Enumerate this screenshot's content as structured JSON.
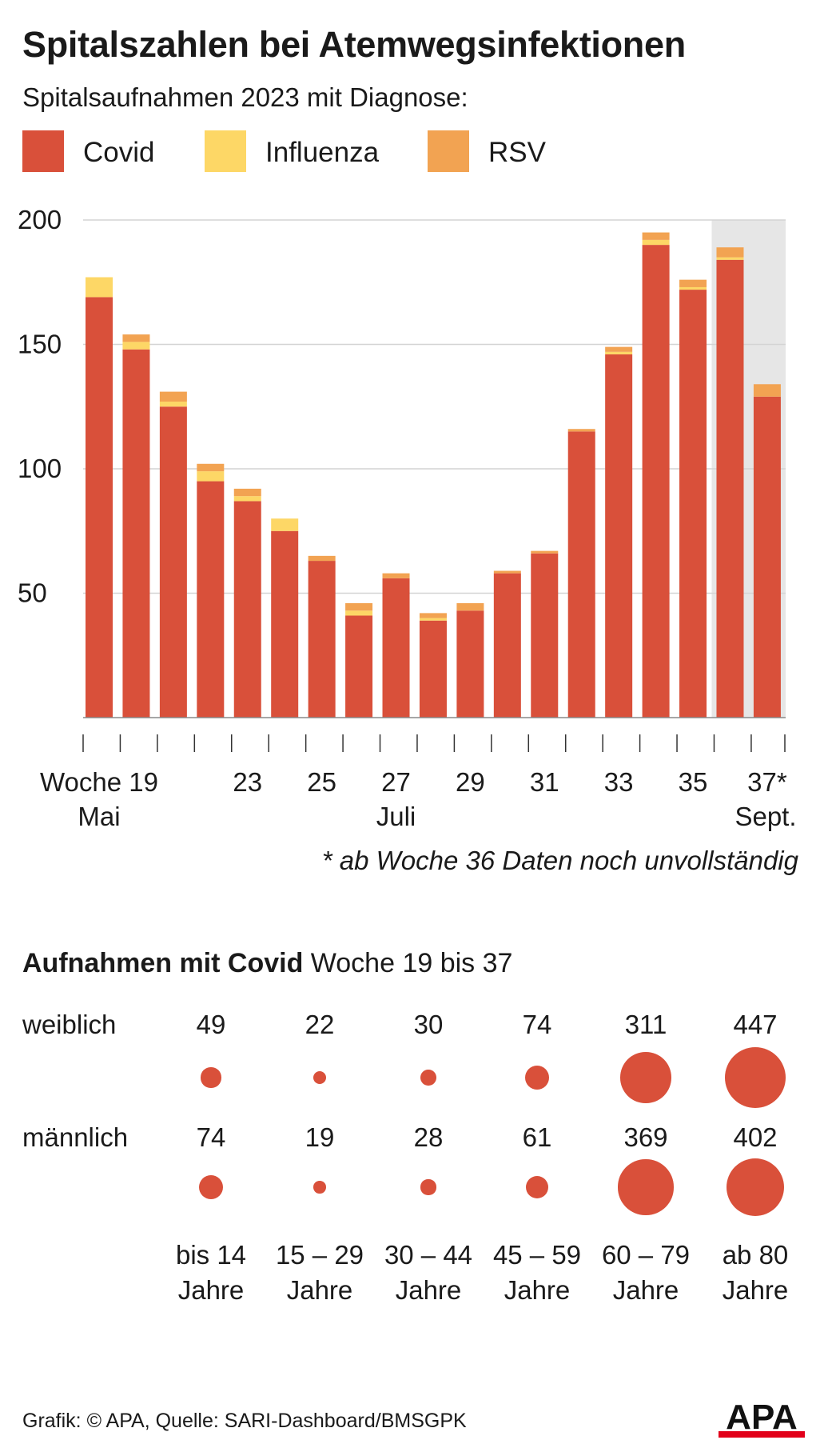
{
  "title": "Spitalszahlen bei Atemwegsinfektionen",
  "subtitle": "Spitalsaufnahmen 2023 mit Diagnose:",
  "colors": {
    "covid": "#d9503a",
    "influenza": "#fdd766",
    "rsv": "#f2a352",
    "shade": "#e6e6e6",
    "grid": "#d4d4d4"
  },
  "legend": {
    "covid": "Covid",
    "influenza": "Influenza",
    "rsv": "RSV"
  },
  "chart_data": {
    "type": "bar",
    "stacked": true,
    "weeks": [
      19,
      20,
      21,
      22,
      23,
      24,
      25,
      26,
      27,
      28,
      29,
      30,
      31,
      32,
      33,
      34,
      35,
      36,
      37
    ],
    "x_tick_labels": [
      "Woche 19",
      "23",
      "25",
      "27",
      "29",
      "31",
      "33",
      "35",
      "37*"
    ],
    "x_tick_weeks": [
      19,
      23,
      25,
      27,
      29,
      31,
      33,
      35,
      37
    ],
    "month_labels": [
      {
        "label": "Mai",
        "week": 19
      },
      {
        "label": "Juli",
        "week": 27
      },
      {
        "label": "Sept.",
        "week": 37
      }
    ],
    "ylim": [
      0,
      200
    ],
    "y_ticks": [
      50,
      100,
      150,
      200
    ],
    "shaded_from_week": 36,
    "series": [
      {
        "name": "Covid",
        "values": [
          169,
          148,
          125,
          95,
          87,
          75,
          63,
          41,
          56,
          39,
          43,
          58,
          66,
          115,
          146,
          190,
          172,
          184,
          129
        ]
      },
      {
        "name": "Influenza",
        "values": [
          8,
          3,
          2,
          4,
          2,
          5,
          0,
          2,
          0,
          1,
          0,
          0,
          0,
          0,
          1,
          2,
          1,
          1,
          0
        ]
      },
      {
        "name": "RSV",
        "values": [
          0,
          3,
          4,
          3,
          3,
          0,
          2,
          3,
          2,
          2,
          3,
          1,
          1,
          1,
          2,
          3,
          3,
          4,
          5
        ]
      }
    ]
  },
  "footnote": "* ab Woche 36 Daten noch unvollständig",
  "covid_age": {
    "title_bold": "Aufnahmen mit Covid",
    "title_rest": "Woche 19 bis 37",
    "rows": [
      {
        "label": "weiblich",
        "values": [
          "49",
          "22",
          "30",
          "74",
          "311",
          "447"
        ]
      },
      {
        "label": "männlich",
        "values": [
          "74",
          "19",
          "28",
          "61",
          "369",
          "402"
        ]
      }
    ],
    "groups": [
      {
        "line1": "bis 14",
        "line2": "Jahre"
      },
      {
        "line1": "15 – 29",
        "line2": "Jahre"
      },
      {
        "line1": "30 – 44",
        "line2": "Jahre"
      },
      {
        "line1": "45 – 59",
        "line2": "Jahre"
      },
      {
        "line1": "60 – 79",
        "line2": "Jahre"
      },
      {
        "line1": "ab 80",
        "line2": "Jahre"
      }
    ]
  },
  "source": "Grafik: © APA, Quelle: SARI-Dashboard/BMSGPK",
  "logo_text": "APA"
}
